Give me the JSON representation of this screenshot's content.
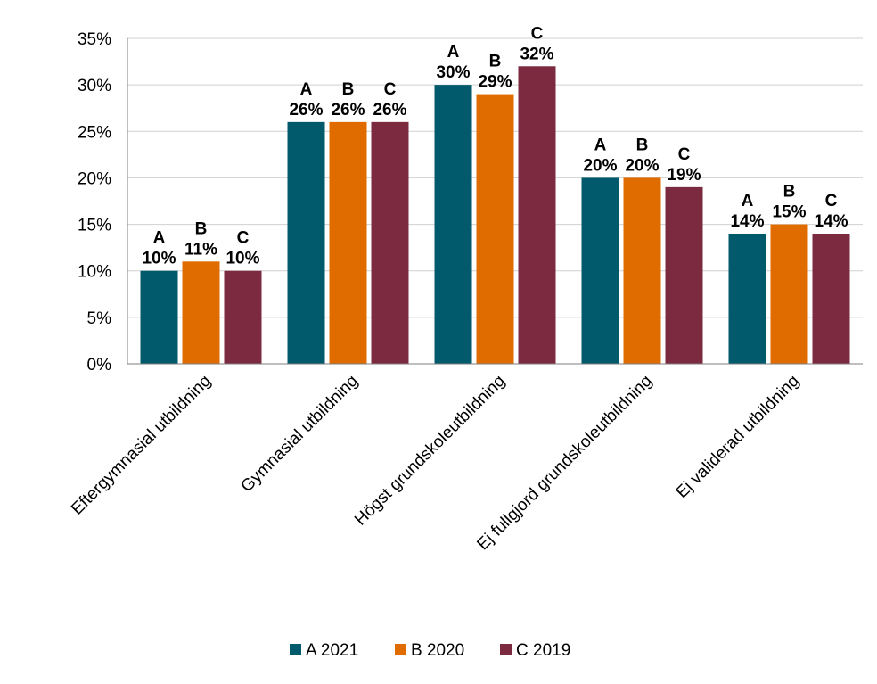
{
  "chart_data": {
    "type": "bar",
    "categories": [
      "Eftergymnasial utbildning",
      "Gymnasial utbildning",
      "Högst grundskoleutbildning",
      "Ej fullgjord grundskoleutbildning",
      "Ej validerad utbildning"
    ],
    "series": [
      {
        "name": "A 2021",
        "letter": "A",
        "color": "#005a6b",
        "values": [
          10,
          26,
          30,
          20,
          14
        ]
      },
      {
        "name": "B 2020",
        "letter": "B",
        "color": "#e06c00",
        "values": [
          11,
          26,
          29,
          20,
          15
        ]
      },
      {
        "name": "C 2019",
        "letter": "C",
        "color": "#7b2a40",
        "values": [
          10,
          26,
          32,
          19,
          14
        ]
      }
    ],
    "y_ticks": [
      "0%",
      "5%",
      "10%",
      "15%",
      "20%",
      "25%",
      "30%",
      "35%"
    ],
    "ylim": [
      0,
      35
    ],
    "value_suffix": "%",
    "grid": true,
    "legend_position": "bottom"
  }
}
